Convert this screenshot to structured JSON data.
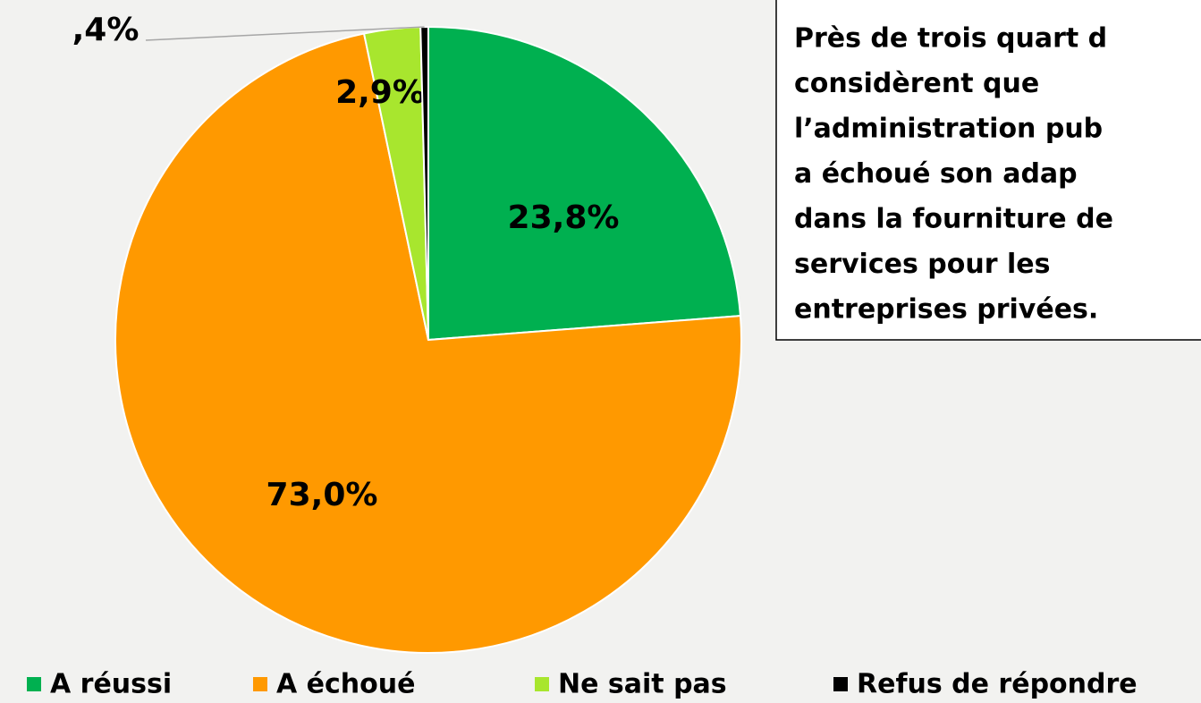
{
  "chart_data": {
    "type": "pie",
    "categories": [
      "A réussi",
      "A échoué",
      "Ne sait pas",
      "Refus de répondre"
    ],
    "values": [
      23.8,
      73.0,
      2.9,
      0.4
    ],
    "value_labels": [
      "23,8%",
      "73,0%",
      "2,9%",
      ",4%"
    ],
    "colors": [
      "#00b050",
      "#ff9900",
      "#a8e62e",
      "#000000"
    ],
    "legend": "bottom",
    "annotation": [
      "Près de trois quart d",
      "considèrent que",
      "l’administration pub",
      "a échoué son adap",
      "dans la fourniture de",
      "services pour les",
      "entreprises privées."
    ]
  }
}
